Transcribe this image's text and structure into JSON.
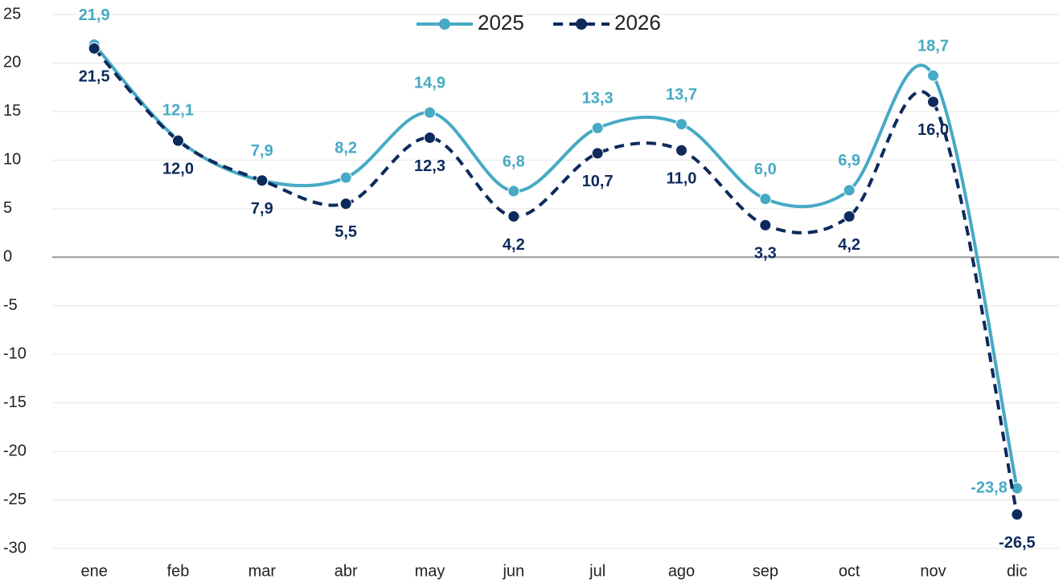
{
  "chart_data": {
    "type": "line",
    "categories": [
      "ene",
      "feb",
      "mar",
      "abr",
      "may",
      "jun",
      "jul",
      "ago",
      "sep",
      "oct",
      "nov",
      "dic"
    ],
    "series": [
      {
        "name": "2025",
        "color": "#46aac4",
        "dashed": false,
        "values": [
          21.9,
          12.1,
          7.9,
          8.2,
          14.9,
          6.8,
          13.3,
          13.7,
          6.0,
          6.9,
          18.7,
          -23.8
        ],
        "value_labels": [
          "21,9",
          "12,1",
          "7,9",
          "8,2",
          "14,9",
          "6,8",
          "13,3",
          "13,7",
          "6,0",
          "6,9",
          "18,7",
          "-23,8"
        ]
      },
      {
        "name": "2026",
        "color": "#0d2a5c",
        "dashed": true,
        "values": [
          21.5,
          12.0,
          7.9,
          5.5,
          12.3,
          4.2,
          10.7,
          11.0,
          3.3,
          4.2,
          16.0,
          -26.5
        ],
        "value_labels": [
          "21,5",
          "12,0",
          "7,9",
          "5,5",
          "12,3",
          "4,2",
          "10,7",
          "11,0",
          "3,3",
          "4,2",
          "16,0",
          "-26,5"
        ]
      }
    ],
    "ylim": [
      -30,
      25
    ],
    "yticks": [
      -30,
      -25,
      -20,
      -15,
      -10,
      -5,
      0,
      5,
      10,
      15,
      20,
      25
    ],
    "grid": true,
    "legend": "top"
  }
}
